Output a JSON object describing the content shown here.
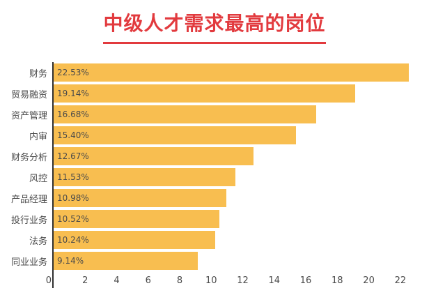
{
  "title": "中级人才需求最高的岗位",
  "colors": {
    "bar": "#f8be50",
    "title": "#e23a3e",
    "axis": "#2f2f2f",
    "text": "#4a4a4a",
    "background": "#ffffff"
  },
  "chart_data": {
    "type": "bar",
    "orientation": "horizontal",
    "title": "中级人才需求最高的岗位",
    "categories": [
      "财务",
      "贸易融资",
      "资产管理",
      "内审",
      "财务分析",
      "风控",
      "产品经理",
      "投行业务",
      "法务",
      "同业业务"
    ],
    "values": [
      22.53,
      19.14,
      16.68,
      15.4,
      12.67,
      11.53,
      10.98,
      10.52,
      10.24,
      9.14
    ],
    "value_labels": [
      "22.53%",
      "19.14%",
      "16.68%",
      "15.40%",
      "12.67%",
      "11.53%",
      "10.98%",
      "10.52%",
      "10.24%",
      "9.14%"
    ],
    "xlabel": "",
    "ylabel": "",
    "xlim": [
      0,
      23.2
    ],
    "x_ticks": [
      0,
      2,
      4,
      6,
      8,
      10,
      12,
      14,
      16,
      18,
      20,
      22
    ],
    "grid": false,
    "legend": "none",
    "bar_color": "#f8be50"
  }
}
